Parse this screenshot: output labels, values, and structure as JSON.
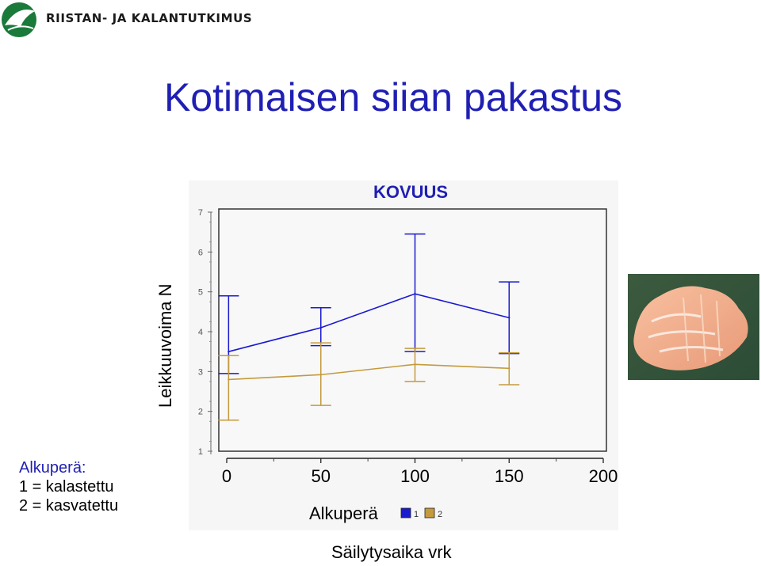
{
  "header": {
    "org_name": "RIISTAN- JA KALANTUTKIMUS",
    "logo_icon": "fish-logo-icon"
  },
  "slide": {
    "title": "Kotimaisen siian pakastus"
  },
  "axis_titles": {
    "y": "Leikkuuvoima N",
    "x": "Säilytysaika vrk"
  },
  "legend_note": {
    "header": "Alkuperä:",
    "lines": [
      "1 = kalastettu",
      "2 = kasvatettu"
    ]
  },
  "photo": {
    "icon": "fish-fillet-photo"
  },
  "colors": {
    "title": "#1f1fb4",
    "series1": "#1a1ad0",
    "series2": "#c49a3c",
    "plot_bg": "#f5f5f5"
  },
  "chart_data": {
    "type": "line",
    "title": "KOVUUS",
    "xlabel": "Säilytysaika vrk",
    "ylabel": "Leikkuuvoima N",
    "x_ticks": [
      0,
      50,
      100,
      150,
      200
    ],
    "y_ticks": [
      1,
      2,
      3,
      4,
      5,
      6,
      7
    ],
    "xlim": [
      -5,
      210
    ],
    "ylim": [
      1,
      7
    ],
    "legend_title": "Alkuperä",
    "legend_position": "bottom",
    "grid": false,
    "series": [
      {
        "name": "1",
        "color": "#1a1ad0",
        "x": [
          1,
          50,
          100,
          150
        ],
        "y": [
          3.5,
          4.1,
          4.95,
          4.35
        ],
        "err_low": [
          2.95,
          3.65,
          3.5,
          3.45
        ],
        "err_high": [
          4.9,
          4.6,
          6.45,
          5.25
        ]
      },
      {
        "name": "2",
        "color": "#c49a3c",
        "x": [
          1,
          50,
          100,
          150
        ],
        "y": [
          2.8,
          2.92,
          3.18,
          3.08
        ],
        "err_low": [
          1.78,
          2.15,
          2.75,
          2.67
        ],
        "err_high": [
          3.4,
          3.72,
          3.58,
          3.47
        ]
      }
    ]
  }
}
